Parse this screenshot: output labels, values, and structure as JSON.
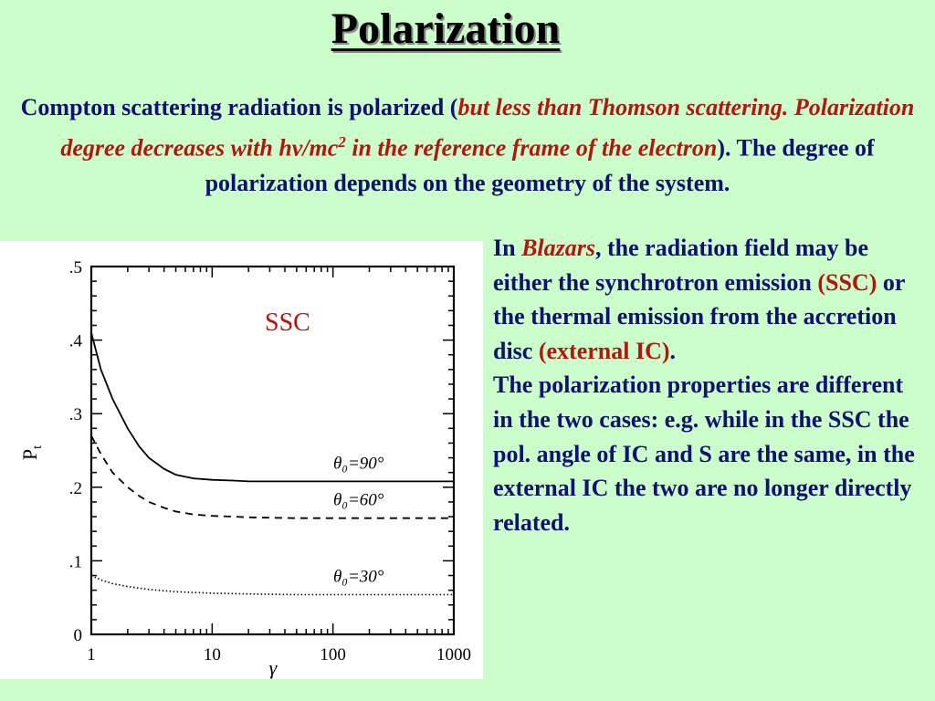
{
  "slide": {
    "title": "Polarization",
    "intro": {
      "part1": "Compton scattering radiation is polarized (",
      "italic_red": "but less than Thomson scattering. Polarization degree decreases with hν/mc",
      "sup": "2",
      "italic_red2": " in the reference frame of the electron",
      "part2": "). The degree of polarization depends on the geometry of the system."
    },
    "side": {
      "p1_a": "In ",
      "p1_blazars": "Blazars",
      "p1_b": ", the radiation field may be either the synchrotron emission ",
      "p1_ssc": "(SSC)",
      "p1_c": " or the thermal emission from the accretion disc ",
      "p1_ext": "(external IC)",
      "p1_d": ".",
      "p2": "The polarization properties are different in the two cases: e.g. while in the SSC the pol. angle of IC and S are the same, in the external IC the two are no longer directly related."
    },
    "colors": {
      "background": "#ccfecc",
      "text_blue": "#10106e",
      "accent_red": "#b3150f"
    }
  },
  "chart_data": {
    "type": "line",
    "annotation": "SSC",
    "xlabel": "γ",
    "ylabel": "P",
    "ylabel_sub": "t",
    "x_scale": "log",
    "xlim": [
      1,
      1000
    ],
    "ylim": [
      0,
      0.5
    ],
    "x_ticks": [
      "1",
      "10",
      "100",
      "1000"
    ],
    "y_ticks": [
      "0",
      ".1",
      ".2",
      ".3",
      ".4",
      ".5"
    ],
    "series": [
      {
        "name": "θ₀=90°",
        "style": "solid",
        "x": [
          1,
          1.2,
          1.5,
          2,
          2.5,
          3,
          4,
          5,
          7,
          10,
          15,
          20,
          50,
          100,
          1000
        ],
        "y": [
          0.41,
          0.36,
          0.32,
          0.28,
          0.255,
          0.24,
          0.225,
          0.217,
          0.212,
          0.21,
          0.209,
          0.208,
          0.208,
          0.208,
          0.208
        ]
      },
      {
        "name": "θ₀=60°",
        "style": "dashed",
        "x": [
          1,
          1.2,
          1.5,
          2,
          2.5,
          3,
          4,
          5,
          7,
          10,
          15,
          20,
          50,
          100,
          1000
        ],
        "y": [
          0.27,
          0.245,
          0.22,
          0.2,
          0.188,
          0.18,
          0.172,
          0.167,
          0.163,
          0.161,
          0.16,
          0.159,
          0.158,
          0.158,
          0.158
        ]
      },
      {
        "name": "θ₀=30°",
        "style": "dotted",
        "x": [
          1,
          1.2,
          1.5,
          2,
          3,
          5,
          10,
          20,
          50,
          100,
          1000
        ],
        "y": [
          0.08,
          0.074,
          0.069,
          0.065,
          0.061,
          0.058,
          0.056,
          0.055,
          0.054,
          0.054,
          0.054
        ]
      }
    ]
  }
}
